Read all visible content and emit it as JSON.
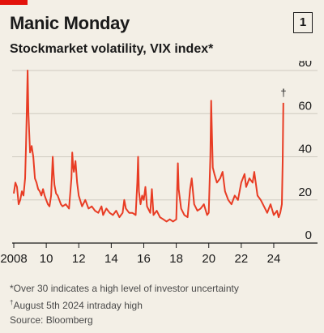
{
  "header": {
    "title": "Manic Monday",
    "badge": "1",
    "subtitle": "Stockmarket volatility, VIX index*"
  },
  "notes": {
    "note1": "*Over 30 indicates a high level of investor uncertainty",
    "note2_mark": "†",
    "note2": "August 5th 2024 intraday high",
    "source": "Source: Bloomberg"
  },
  "colors": {
    "line": "#e83c24",
    "grid": "#cfcac0",
    "background": "#f3efe6",
    "brand": "#e3120b"
  },
  "chart_data": {
    "type": "line",
    "title": "Stockmarket volatility, VIX index*",
    "xlabel": "",
    "ylabel": "",
    "xlim": [
      2007.9,
      2024.6
    ],
    "ylim": [
      0,
      80
    ],
    "y_ticks": [
      0,
      20,
      40,
      60,
      80
    ],
    "y_tick_labels": [
      "0",
      "20",
      "40",
      "60",
      "80"
    ],
    "x_ticks": [
      2008,
      2010,
      2012,
      2014,
      2016,
      2018,
      2020,
      2022,
      2024
    ],
    "x_tick_labels": [
      "2008",
      "10",
      "12",
      "14",
      "16",
      "18",
      "20",
      "22",
      "24"
    ],
    "grid": true,
    "annotations": [
      {
        "text": "†",
        "x": 2024.6,
        "y": 65
      }
    ],
    "series": [
      {
        "x": [
          2008.0,
          2008.1,
          2008.2,
          2008.3,
          2008.4,
          2008.5,
          2008.6,
          2008.7,
          2008.75,
          2008.8,
          2008.85,
          2008.9,
          2009.0,
          2009.1,
          2009.2,
          2009.3,
          2009.4,
          2009.5,
          2009.6,
          2009.7,
          2009.8,
          2009.9,
          2010.0,
          2010.1,
          2010.2,
          2010.3,
          2010.4,
          2010.45,
          2010.5,
          2010.6,
          2010.7,
          2010.8,
          2010.9,
          2011.0,
          2011.2,
          2011.4,
          2011.55,
          2011.6,
          2011.65,
          2011.7,
          2011.8,
          2011.9,
          2012.0,
          2012.2,
          2012.4,
          2012.6,
          2012.8,
          2013.0,
          2013.2,
          2013.4,
          2013.5,
          2013.7,
          2013.9,
          2014.1,
          2014.3,
          2014.5,
          2014.7,
          2014.8,
          2014.9,
          2015.1,
          2015.3,
          2015.5,
          2015.6,
          2015.65,
          2015.7,
          2015.8,
          2015.9,
          2016.0,
          2016.1,
          2016.2,
          2016.4,
          2016.5,
          2016.6,
          2016.8,
          2017.0,
          2017.2,
          2017.4,
          2017.6,
          2017.8,
          2018.0,
          2018.1,
          2018.15,
          2018.3,
          2018.5,
          2018.7,
          2018.85,
          2018.95,
          2019.1,
          2019.3,
          2019.5,
          2019.7,
          2019.9,
          2020.0,
          2020.1,
          2020.15,
          2020.2,
          2020.25,
          2020.35,
          2020.5,
          2020.7,
          2020.85,
          2021.0,
          2021.2,
          2021.4,
          2021.6,
          2021.8,
          2022.0,
          2022.2,
          2022.3,
          2022.5,
          2022.7,
          2022.8,
          2023.0,
          2023.2,
          2023.4,
          2023.6,
          2023.8,
          2024.0,
          2024.2,
          2024.3,
          2024.4,
          2024.5,
          2024.55,
          2024.59
        ],
        "y": [
          23,
          28,
          26,
          18,
          20,
          24,
          22,
          30,
          45,
          62,
          80,
          60,
          42,
          45,
          40,
          30,
          28,
          25,
          24,
          22,
          25,
          22,
          20,
          18,
          17,
          22,
          40,
          32,
          27,
          23,
          22,
          20,
          18,
          17,
          18,
          16,
          30,
          42,
          36,
          33,
          38,
          28,
          22,
          17,
          20,
          16,
          17,
          15,
          14,
          17,
          13,
          16,
          14,
          13,
          15,
          12,
          14,
          20,
          16,
          14,
          14,
          13,
          28,
          40,
          24,
          18,
          22,
          20,
          26,
          17,
          14,
          25,
          13,
          15,
          12,
          11,
          10,
          11,
          10,
          11,
          37,
          25,
          16,
          13,
          12,
          25,
          30,
          18,
          15,
          16,
          18,
          13,
          14,
          40,
          66,
          50,
          35,
          32,
          28,
          30,
          33,
          24,
          20,
          18,
          22,
          20,
          28,
          32,
          26,
          30,
          28,
          33,
          22,
          20,
          17,
          14,
          18,
          13,
          15,
          12,
          14,
          18,
          38,
          65
        ]
      }
    ]
  }
}
